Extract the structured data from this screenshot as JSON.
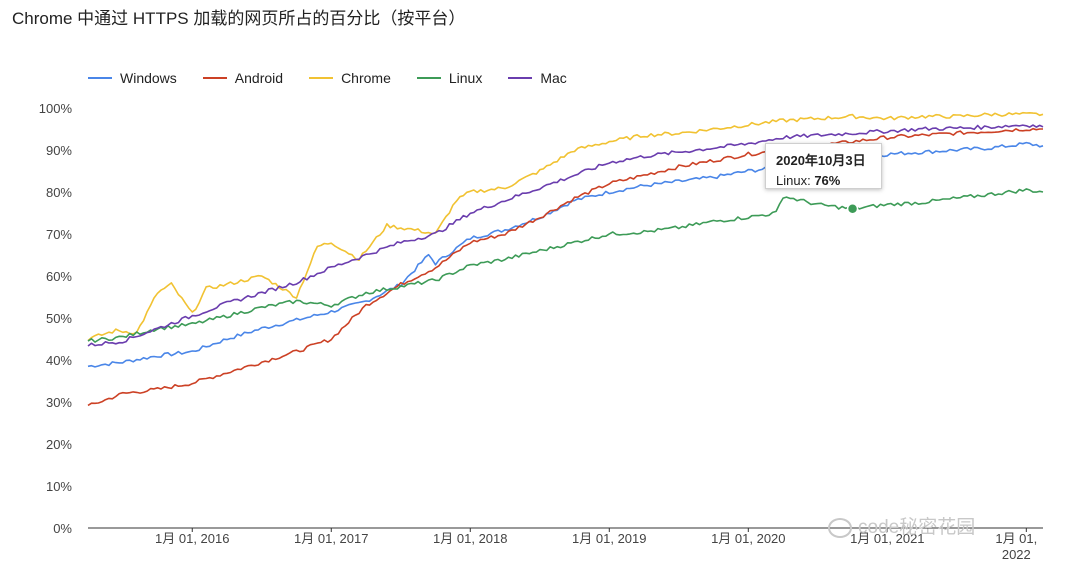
{
  "page": {
    "title": "Chrome 中通过 HTTPS 加载的网页所占的百分比（按平台）"
  },
  "tooltip": {
    "date": "2020年10月3日",
    "series": "Linux",
    "value": "76%"
  },
  "watermark": "code秘密花园",
  "chart_data": {
    "type": "line",
    "title": "Chrome 中通过 HTTPS 加载的网页所占的百分比（按平台）",
    "xlabel": "",
    "ylabel": "",
    "x_range": [
      2015.25,
      2022.12
    ],
    "ylim": [
      0,
      100
    ],
    "y_ticks": [
      0,
      10,
      20,
      30,
      40,
      50,
      60,
      70,
      80,
      90,
      100
    ],
    "y_tick_labels": [
      "0%",
      "10%",
      "20%",
      "30%",
      "40%",
      "50%",
      "60%",
      "70%",
      "80%",
      "90%",
      "100%"
    ],
    "x_ticks": [
      2016,
      2017,
      2018,
      2019,
      2020,
      2021,
      2022
    ],
    "x_tick_labels": [
      "1月 01, 2016",
      "1月 01, 2017",
      "1月 01, 2018",
      "1月 01, 2019",
      "1月 01, 2020",
      "1月 01, 2021",
      "1月 01, 2022"
    ],
    "grid": false,
    "legend_position": "top-left",
    "highlight": {
      "series": "Linux",
      "x": 2020.75,
      "y": 76
    },
    "series": [
      {
        "name": "Windows",
        "color": "#4a86e8",
        "x": [
          2015.25,
          2015.5,
          2015.75,
          2016.0,
          2016.25,
          2016.5,
          2016.75,
          2017.0,
          2017.25,
          2017.5,
          2017.7,
          2017.75,
          2018.0,
          2018.25,
          2018.5,
          2018.75,
          2019.0,
          2019.25,
          2019.5,
          2019.75,
          2020.0,
          2020.25,
          2020.5,
          2020.75,
          2021.0,
          2021.25,
          2021.5,
          2021.75,
          2022.0,
          2022.12
        ],
        "y": [
          38.5,
          39.5,
          41,
          42,
          45,
          47.5,
          49.5,
          51.5,
          54,
          58,
          65,
          63,
          69,
          71,
          74,
          78,
          80,
          81.5,
          82.5,
          83.5,
          85,
          86,
          87,
          88,
          89,
          89.5,
          90,
          90.5,
          91.5,
          91
        ]
      },
      {
        "name": "Android",
        "color": "#cc4125",
        "x": [
          2015.25,
          2015.5,
          2015.75,
          2016.0,
          2016.25,
          2016.5,
          2016.75,
          2017.0,
          2017.25,
          2017.5,
          2017.75,
          2018.0,
          2018.25,
          2018.5,
          2018.75,
          2019.0,
          2019.25,
          2019.5,
          2019.75,
          2020.0,
          2020.25,
          2020.5,
          2020.75,
          2021.0,
          2021.25,
          2021.5,
          2021.75,
          2022.0,
          2022.12
        ],
        "y": [
          29,
          32,
          33,
          34.5,
          37,
          39.5,
          42,
          45,
          53,
          58,
          62,
          68,
          70,
          74,
          78.5,
          82,
          84,
          86,
          87.5,
          89,
          90,
          91,
          92,
          93,
          93.5,
          94,
          94.5,
          95,
          95
        ]
      },
      {
        "name": "Chrome",
        "color": "#f1c232",
        "x": [
          2015.25,
          2015.45,
          2015.6,
          2015.75,
          2015.85,
          2016.0,
          2016.1,
          2016.25,
          2016.5,
          2016.75,
          2016.9,
          2017.0,
          2017.2,
          2017.4,
          2017.6,
          2017.75,
          2017.9,
          2018.0,
          2018.25,
          2018.5,
          2018.75,
          2019.0,
          2019.25,
          2019.5,
          2019.75,
          2020.0,
          2020.25,
          2020.5,
          2020.75,
          2021.0,
          2021.25,
          2021.5,
          2021.75,
          2022.0,
          2022.12
        ],
        "y": [
          45,
          47,
          46.5,
          56,
          58,
          51,
          57,
          58,
          60,
          55,
          67,
          68,
          64,
          72,
          71,
          70,
          78,
          80,
          81,
          85,
          90,
          92,
          93.5,
          94,
          95,
          96,
          97,
          97.5,
          98,
          97.5,
          98,
          98,
          98.5,
          98.5,
          98.5
        ]
      },
      {
        "name": "Linux",
        "color": "#3d9b57",
        "x": [
          2015.25,
          2015.5,
          2015.75,
          2016.0,
          2016.25,
          2016.5,
          2016.75,
          2017.0,
          2017.25,
          2017.5,
          2017.75,
          2018.0,
          2018.25,
          2018.5,
          2018.75,
          2019.0,
          2019.25,
          2019.5,
          2019.75,
          2020.0,
          2020.2,
          2020.25,
          2020.5,
          2020.75,
          2021.0,
          2021.25,
          2021.5,
          2021.75,
          2022.0,
          2022.12
        ],
        "y": [
          44.5,
          45.5,
          47.5,
          48.5,
          50.5,
          52.5,
          54,
          53,
          56,
          57.5,
          59,
          62.5,
          64,
          66,
          68,
          70,
          70.5,
          71.5,
          73,
          74,
          75,
          79,
          77,
          76,
          77,
          77.5,
          78.5,
          79.5,
          80.5,
          80
        ]
      },
      {
        "name": "Mac",
        "color": "#6a3dae",
        "x": [
          2015.25,
          2015.5,
          2015.75,
          2016.0,
          2016.25,
          2016.5,
          2016.75,
          2017.0,
          2017.25,
          2017.5,
          2017.75,
          2018.0,
          2018.25,
          2018.5,
          2018.75,
          2019.0,
          2019.25,
          2019.5,
          2019.75,
          2020.0,
          2020.25,
          2020.5,
          2020.75,
          2021.0,
          2021.25,
          2021.5,
          2021.75,
          2022.0,
          2022.12
        ],
        "y": [
          43.5,
          44.5,
          47.5,
          50.5,
          53.5,
          56,
          58.5,
          62,
          65,
          68,
          70,
          75,
          78,
          81,
          84,
          87,
          88.5,
          89.5,
          90.5,
          91.5,
          93,
          93.5,
          94,
          94.5,
          95,
          95.2,
          95.5,
          96,
          95.5
        ]
      }
    ]
  }
}
